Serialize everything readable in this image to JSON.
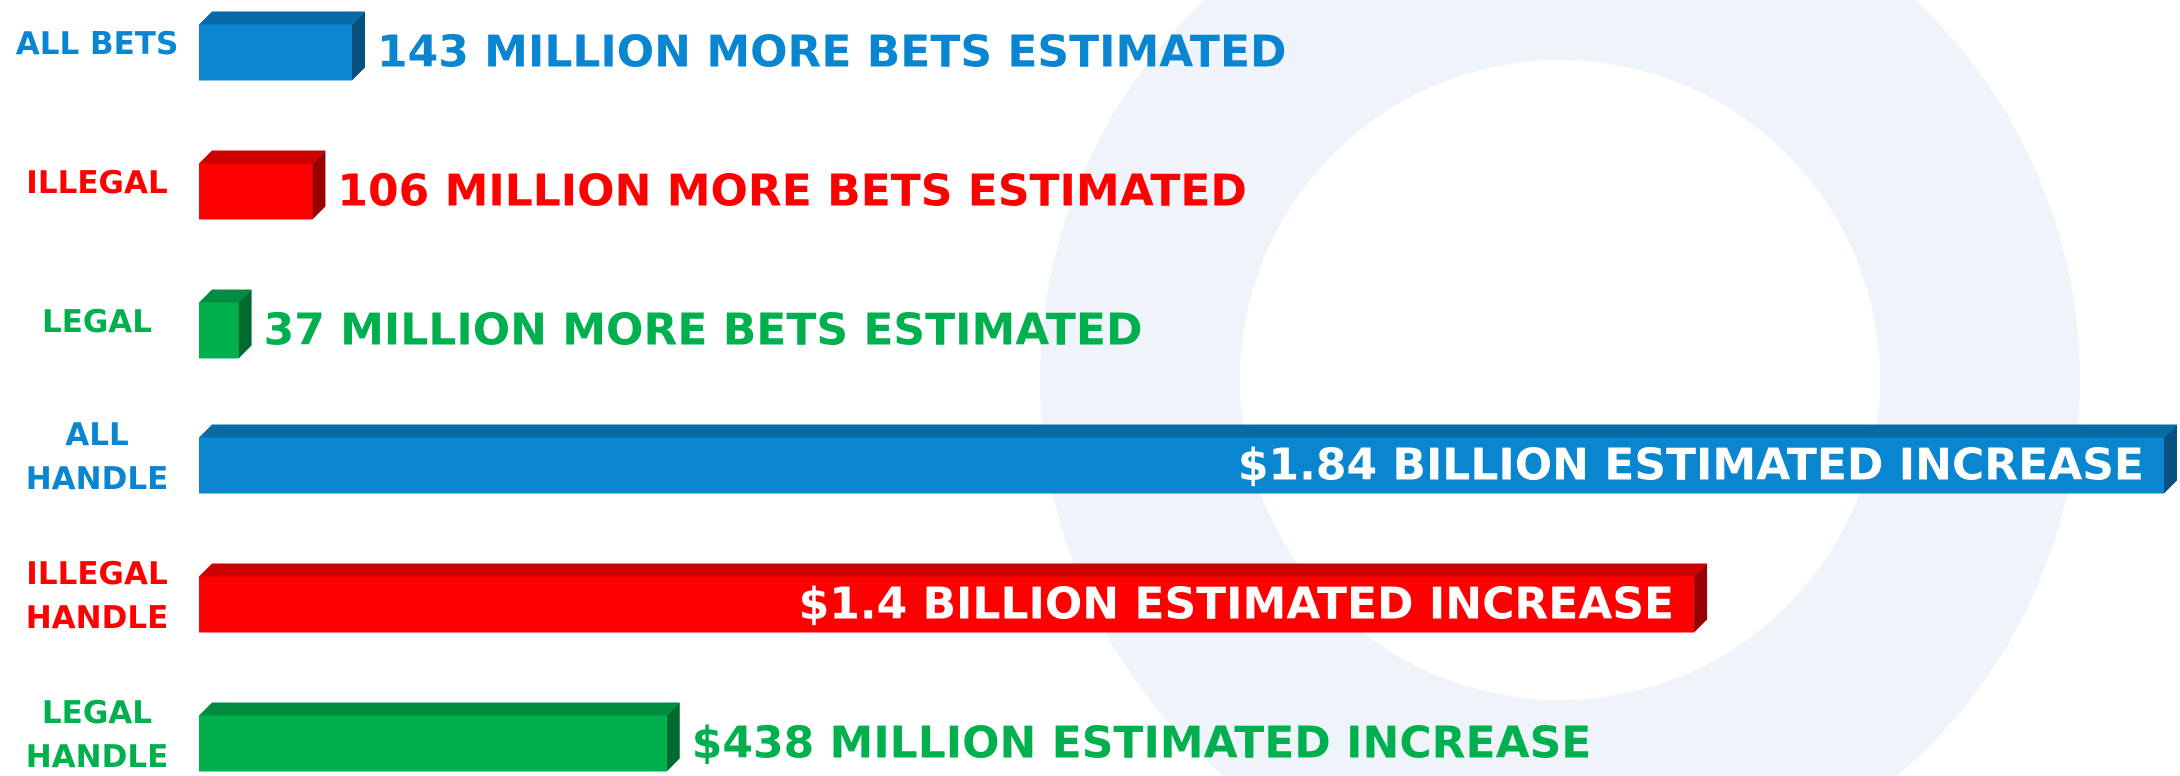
{
  "chart_data": [
    {
      "type": "bar3d",
      "categories": [
        "ALL BETS",
        "ILLEGAL",
        "LEGAL"
      ],
      "values": [
        143000000,
        106000000,
        37000000
      ],
      "value_labels": [
        "143 MILLION MORE BETS ESTIMATED",
        "106 MILLION MORE BETS ESTIMATED",
        "37 MILLION MORE BETS ESTIMATED"
      ],
      "colors": [
        "#0a86d0",
        "#ff0000",
        "#00b04f"
      ]
    },
    {
      "type": "bar3d",
      "categories": [
        "ALL HANDLE",
        "ILLEGAL HANDLE",
        "LEGAL HANDLE"
      ],
      "values": [
        1840000000,
        1400000000,
        438000000
      ],
      "value_labels": [
        "$1.84 BILLION ESTIMATED INCREASE",
        "$1.4 BILLION ESTIMATED INCREASE",
        "$438 MILLION ESTIMATED INCREASE"
      ],
      "colors": [
        "#0a86d0",
        "#ff0000",
        "#00b04f"
      ]
    }
  ]
}
